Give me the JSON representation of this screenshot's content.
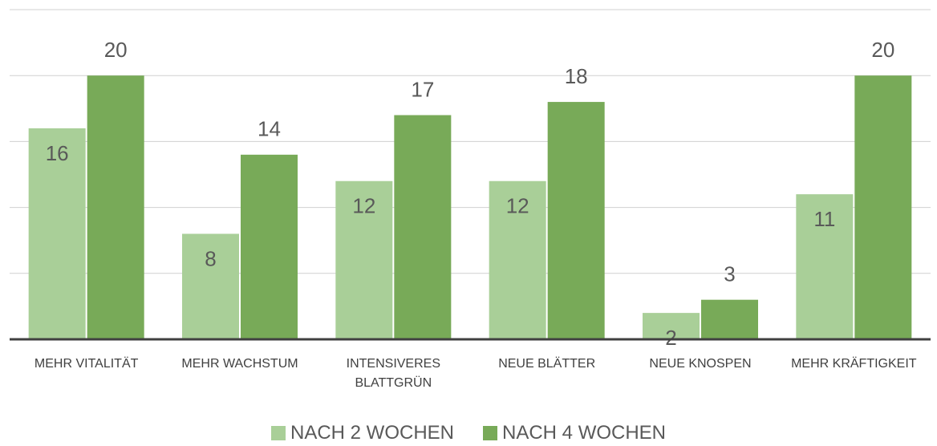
{
  "chart_data": {
    "type": "bar",
    "categories": [
      "MEHR VITALITÄT",
      "MEHR WACHSTUM",
      "INTENSIVERES BLATTGRÜN",
      "NEUE BLÄTTER",
      "NEUE KNOSPEN",
      "MEHR KRÄFTIGKEIT"
    ],
    "series": [
      {
        "name": "NACH 2 WOCHEN",
        "color": "#a9cf98",
        "values": [
          16,
          8,
          12,
          12,
          2,
          11
        ]
      },
      {
        "name": "NACH 4 WOCHEN",
        "color": "#78aa58",
        "values": [
          20,
          14,
          17,
          18,
          3,
          20
        ]
      }
    ],
    "ylim": [
      0,
      25
    ],
    "yticks": [
      0,
      5,
      10,
      15,
      20,
      25
    ],
    "grid": true,
    "legend": "bottom"
  }
}
